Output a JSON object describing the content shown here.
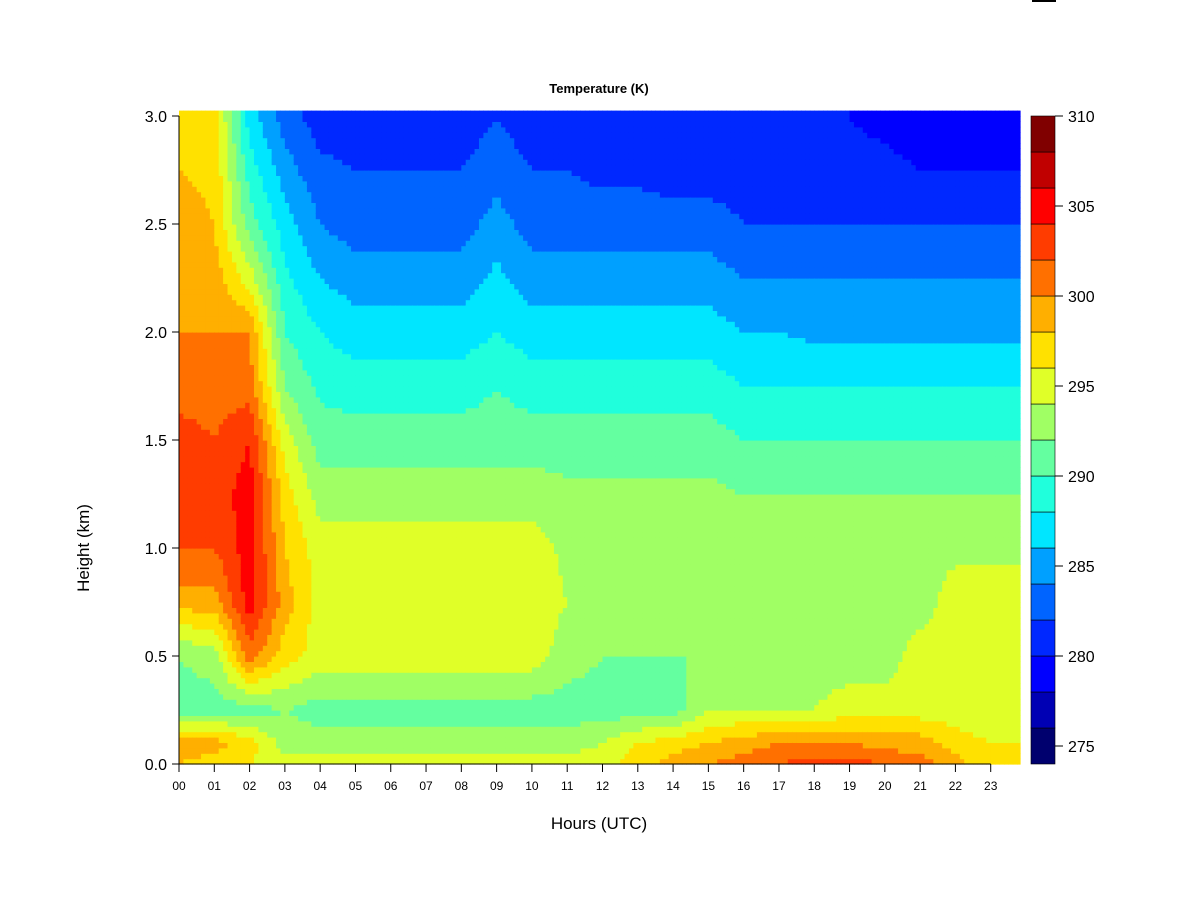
{
  "chart_data": {
    "type": "heatmap",
    "title": "Temperature (K)",
    "xlabel": "Hours (UTC)",
    "ylabel": "Height (km)",
    "x_ticks": [
      "00",
      "01",
      "02",
      "03",
      "04",
      "05",
      "06",
      "07",
      "08",
      "09",
      "10",
      "11",
      "12",
      "13",
      "14",
      "15",
      "16",
      "17",
      "18",
      "19",
      "20",
      "21",
      "22",
      "23"
    ],
    "y_ticks": [
      "0.0",
      "0.5",
      "1.0",
      "1.5",
      "2.0",
      "2.5",
      "3.0"
    ],
    "xlim": [
      0,
      23.83
    ],
    "ylim": [
      0,
      3.0
    ],
    "x": [
      0,
      1,
      2,
      3,
      4,
      5,
      6,
      7,
      8,
      9,
      10,
      11,
      12,
      13,
      14,
      15,
      16,
      17,
      18,
      19,
      20,
      21,
      22,
      23
    ],
    "heights": [
      0.0,
      0.1,
      0.25,
      0.5,
      0.75,
      1.0,
      1.25,
      1.5,
      1.75,
      2.0,
      2.25,
      2.5,
      2.75,
      3.0
    ],
    "z": [
      [
        298,
        297,
        296,
        295,
        295,
        295,
        295,
        295,
        295,
        295,
        295,
        295,
        295,
        297,
        299,
        300,
        301,
        302,
        303,
        303,
        302,
        301,
        299,
        296
      ],
      [
        299,
        299,
        297,
        293,
        293,
        293,
        293,
        293,
        293,
        293,
        293,
        293,
        294,
        296,
        297,
        298,
        299,
        300,
        300,
        300,
        299,
        299,
        297,
        296
      ],
      [
        291,
        291,
        291,
        292,
        291,
        291,
        291,
        291,
        291,
        291,
        291,
        291,
        291,
        291,
        291,
        294,
        294,
        294,
        294,
        295,
        295,
        295,
        295,
        294
      ],
      [
        292,
        293,
        301,
        297,
        295,
        295,
        295,
        295,
        295,
        295,
        295,
        293,
        292,
        292,
        292,
        292,
        293,
        293,
        293,
        293,
        293,
        295,
        295,
        295
      ],
      [
        299,
        299,
        305,
        299,
        295,
        295,
        295,
        295,
        295,
        295,
        295,
        294,
        293,
        293,
        293,
        293,
        293,
        293,
        293,
        293,
        293,
        293,
        295,
        295
      ],
      [
        302,
        302,
        305,
        298,
        295,
        295,
        295,
        295,
        295,
        295,
        295,
        293.5,
        293.5,
        293.5,
        293.5,
        293.5,
        293,
        293,
        293,
        293,
        293,
        293.5,
        293.5,
        293.5
      ],
      [
        303.5,
        303,
        305,
        297,
        293,
        293,
        293,
        293,
        293,
        293,
        293,
        292.5,
        292.5,
        292.5,
        292.5,
        292.5,
        292,
        292,
        292,
        292,
        292,
        292,
        292,
        292
      ],
      [
        303,
        302,
        304,
        295,
        291,
        291,
        291,
        291,
        291,
        291,
        291,
        291,
        291,
        291,
        291,
        291,
        290,
        290,
        290,
        290,
        290,
        290,
        290,
        290
      ],
      [
        301,
        301,
        301,
        292,
        289.5,
        289,
        289,
        289,
        289,
        290,
        289,
        289,
        289,
        289,
        289,
        289,
        288,
        288,
        288,
        288,
        288,
        288,
        288,
        288
      ],
      [
        300,
        300,
        300,
        290,
        288,
        287,
        287,
        287,
        287,
        288,
        287,
        287,
        287,
        287,
        287,
        287,
        286,
        286,
        285.5,
        285.5,
        285.5,
        285.5,
        285.5,
        285.5
      ],
      [
        299.5,
        299,
        295,
        288.5,
        286,
        285,
        285,
        285,
        285,
        286.5,
        285,
        285,
        285,
        285,
        285,
        285,
        284,
        284,
        284,
        284,
        284,
        284,
        284,
        284
      ],
      [
        299,
        298,
        291,
        287,
        284,
        283,
        283,
        283,
        283,
        285,
        283,
        283,
        283,
        283,
        283,
        283,
        282,
        282,
        282,
        282,
        282,
        282,
        282,
        282
      ],
      [
        298,
        297.5,
        289,
        285,
        282.5,
        282,
        282,
        282,
        282,
        283,
        282,
        282,
        281.5,
        281.5,
        281,
        281,
        281,
        281,
        281,
        280.5,
        280.5,
        280,
        280,
        280
      ],
      [
        297,
        297,
        287,
        283,
        281,
        281,
        281,
        281,
        281,
        282,
        281,
        280.5,
        280.5,
        280.5,
        280,
        280,
        280,
        280,
        280,
        280,
        279.5,
        279,
        279,
        279
      ]
    ],
    "colorbar": {
      "levels": [
        274,
        276,
        278,
        280,
        282,
        284,
        286,
        288,
        290,
        292,
        294,
        296,
        298,
        300,
        302,
        304,
        306,
        308,
        310
      ],
      "tick_labels": [
        "275",
        "280",
        "285",
        "290",
        "295",
        "300",
        "305",
        "310"
      ],
      "colors": [
        "#00006e",
        "#0000b4",
        "#0000ff",
        "#0028ff",
        "#0064ff",
        "#00a0ff",
        "#00e6ff",
        "#20ffdc",
        "#64ffa0",
        "#a0ff64",
        "#e0ff28",
        "#ffe100",
        "#ffaf00",
        "#ff7000",
        "#ff3c00",
        "#ff0000",
        "#c00000",
        "#800000"
      ]
    }
  }
}
